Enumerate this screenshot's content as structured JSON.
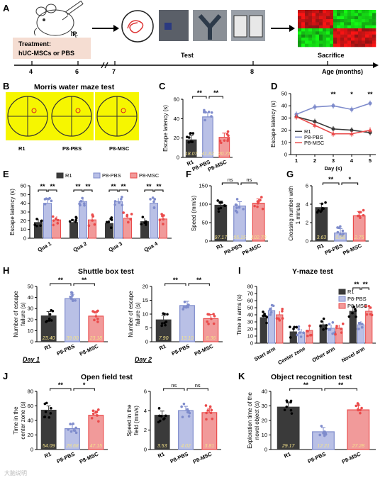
{
  "colors": {
    "R1": "#3a3a3a",
    "P8PBS": "#7f8ccc",
    "P8MSC": "#ea4b4b",
    "maze_bg": "#f6f600",
    "dl": "#f4e28a"
  },
  "panel_A": {
    "letter": "A",
    "ip": "IP.",
    "treatment": "Treatment:",
    "treatment2": "hUC-MSCs or PBS",
    "test": "Test",
    "sacrifice": "Sacrifice",
    "axis_label": "Age (months)",
    "ticks": [
      "4",
      "6",
      "7",
      "8"
    ]
  },
  "panel_B": {
    "letter": "B",
    "title": "Morris water maze test",
    "labels": [
      "R1",
      "P8-PBS",
      "P8-MSC"
    ]
  },
  "panel_C": {
    "letter": "C"
  },
  "panel_D": {
    "letter": "D"
  },
  "panel_E": {
    "letter": "E"
  },
  "panel_F": {
    "letter": "F"
  },
  "panel_G": {
    "letter": "G"
  },
  "panel_H": {
    "letter": "H",
    "title": "Shuttle box test",
    "day1": "Day 1",
    "day2": "Day 2"
  },
  "panel_I": {
    "letter": "I",
    "title": "Y-maze test"
  },
  "panel_J": {
    "letter": "J",
    "title": "Open field test"
  },
  "panel_K": {
    "letter": "K",
    "title": "Object recognition test"
  },
  "watermark": "大脑说明",
  "chart_data": [
    {
      "id": "C",
      "type": "bar",
      "categories": [
        "R1",
        "P8-PBS",
        "P8-MSC"
      ],
      "values": [
        18.07,
        41.82,
        20.71
      ],
      "labels": [
        "18.07",
        "41.82",
        "20.71"
      ],
      "ylabel": "Escape latency (s)",
      "ylim": [
        0,
        60
      ],
      "yticks": [
        0,
        20,
        40,
        60
      ],
      "sig": [
        {
          "a": 0,
          "b": 1,
          "t": "**"
        },
        {
          "a": 1,
          "b": 2,
          "t": "**"
        }
      ]
    },
    {
      "id": "D",
      "type": "line",
      "x": [
        1,
        2,
        3,
        4,
        5
      ],
      "xlabel": "Day (s)",
      "ylabel": "Escape latency (s)",
      "ylim": [
        0,
        50
      ],
      "yticks": [
        0,
        10,
        20,
        30,
        40,
        50
      ],
      "series": [
        {
          "name": "R1",
          "values": [
            31,
            27,
            21,
            20,
            18
          ]
        },
        {
          "name": "P8-PBS",
          "values": [
            33,
            39,
            40,
            37,
            42
          ]
        },
        {
          "name": "P8-MSC",
          "values": [
            31,
            24,
            17,
            17,
            20
          ]
        }
      ],
      "sig": [
        {
          "x": 3,
          "t": "**"
        },
        {
          "x": 4,
          "t": "*"
        },
        {
          "x": 5,
          "t": "**"
        }
      ]
    },
    {
      "id": "E",
      "type": "bar",
      "categories": [
        "Qua 1",
        "Qua 2",
        "Qua 3",
        "Qua 4"
      ],
      "ylabel": "Escape latency (s)",
      "ylim": [
        0,
        60
      ],
      "yticks": [
        0,
        10,
        20,
        30,
        40,
        50,
        60
      ],
      "series": [
        {
          "name": "R1",
          "values": [
            18,
            18,
            17,
            19
          ]
        },
        {
          "name": "P8-PBS",
          "values": [
            40,
            42,
            42,
            40
          ]
        },
        {
          "name": "P8-MSC",
          "values": [
            21,
            21,
            23,
            22
          ]
        }
      ],
      "sig_labels": [
        "**",
        "**"
      ]
    },
    {
      "id": "F",
      "type": "bar",
      "categories": [
        "R1",
        "P8-PBS",
        "P8-MSC"
      ],
      "values": [
        97.17,
        95.15,
        102.7
      ],
      "labels": [
        "97.17",
        "95.15",
        "102.70"
      ],
      "ylabel": "Speed (mm/s)",
      "ylim": [
        0,
        150
      ],
      "yticks": [
        0,
        50,
        100,
        150
      ],
      "sig": [
        {
          "a": 0,
          "b": 1,
          "t": "ns"
        },
        {
          "a": 1,
          "b": 2,
          "t": "ns"
        }
      ]
    },
    {
      "id": "G",
      "type": "bar",
      "categories": [
        "R1",
        "P8-PBS",
        "P8-MSC"
      ],
      "values": [
        3.63,
        0.88,
        2.75
      ],
      "labels": [
        "3.63",
        "0.88",
        "2.75"
      ],
      "ylabel": "Crossing number with 1 minute",
      "ylim": [
        0,
        6
      ],
      "yticks": [
        0,
        2,
        4,
        6
      ],
      "sig": [
        {
          "a": 0,
          "b": 1,
          "t": "**"
        },
        {
          "a": 1,
          "b": 2,
          "t": "*"
        }
      ]
    },
    {
      "id": "H1",
      "type": "bar",
      "categories": [
        "R1",
        "P8-PBS",
        "P8-MSC"
      ],
      "values": [
        23.4,
        39.0,
        23.18
      ],
      "labels": [
        "23.40",
        "39.00",
        "23.18"
      ],
      "ylabel": "Number of escape failure (s)",
      "ylim": [
        0,
        50
      ],
      "yticks": [
        0,
        10,
        20,
        30,
        40,
        50
      ],
      "sig": [
        {
          "a": 0,
          "b": 1,
          "t": "**"
        },
        {
          "a": 1,
          "b": 2,
          "t": "**"
        }
      ]
    },
    {
      "id": "H2",
      "type": "bar",
      "categories": [
        "R1",
        "P8-PBS",
        "P8-MSC"
      ],
      "values": [
        7.9,
        13.1,
        8.36
      ],
      "labels": [
        "7.90",
        "13.10",
        "8.36"
      ],
      "ylabel": "Number of escape failure (s)",
      "ylim": [
        0,
        20
      ],
      "yticks": [
        0,
        5,
        10,
        15,
        20
      ],
      "sig": [
        {
          "a": 0,
          "b": 1,
          "t": "**"
        },
        {
          "a": 1,
          "b": 2,
          "t": "**"
        }
      ]
    },
    {
      "id": "I",
      "type": "bar",
      "categories": [
        "Start arm",
        "Center zone",
        "Other arm",
        "Novel arm"
      ],
      "ylabel": "Time in arms (s)",
      "ylim": [
        0,
        80
      ],
      "yticks": [
        0,
        10,
        20,
        30,
        40,
        50,
        60,
        70,
        80
      ],
      "series": [
        {
          "name": "R1",
          "values": [
            36,
            16,
            26,
            45
          ]
        },
        {
          "name": "P8-PBS",
          "values": [
            46,
            15,
            21,
            26
          ]
        },
        {
          "name": "P8-MSC",
          "values": [
            40,
            18,
            21,
            45
          ]
        }
      ],
      "legend": [
        "R1",
        "P8-PBS",
        "P8-MSC"
      ],
      "sig_labels": [
        "**",
        "**"
      ]
    },
    {
      "id": "J1",
      "type": "bar",
      "categories": [
        "R1",
        "P8-PBS",
        "P8-MSC"
      ],
      "values": [
        54.09,
        28.68,
        47.15
      ],
      "labels": [
        "54.09",
        "28.68",
        "47.15"
      ],
      "ylabel": "Time in the center zone (s)",
      "ylim": [
        0,
        80
      ],
      "yticks": [
        0,
        20,
        40,
        60,
        80
      ],
      "sig": [
        {
          "a": 0,
          "b": 1,
          "t": "**"
        },
        {
          "a": 1,
          "b": 2,
          "t": "*"
        }
      ]
    },
    {
      "id": "J2",
      "type": "bar",
      "categories": [
        "R1",
        "P8-PBS",
        "P8-MSC"
      ],
      "values": [
        3.53,
        4.02,
        3.81
      ],
      "labels": [
        "3.53",
        "4.02",
        "3.81"
      ],
      "ylabel": "Speed in the field (mm/s)",
      "ylim": [
        0,
        6
      ],
      "yticks": [
        0,
        2,
        4,
        6
      ],
      "sig": [
        {
          "a": 0,
          "b": 1,
          "t": "ns"
        },
        {
          "a": 1,
          "b": 2,
          "t": "ns"
        }
      ]
    },
    {
      "id": "K",
      "type": "bar",
      "categories": [
        "R1",
        "P8-PBS",
        "P8-MSC"
      ],
      "values": [
        29.17,
        12.21,
        27.28
      ],
      "labels": [
        "29.17",
        "12.21",
        "27.28"
      ],
      "ylabel": "Exploration time of the novel object (s)",
      "ylim": [
        0,
        40
      ],
      "yticks": [
        0,
        10,
        20,
        30,
        40
      ],
      "sig": [
        {
          "a": 0,
          "b": 1,
          "t": "**"
        },
        {
          "a": 1,
          "b": 2,
          "t": "**"
        }
      ]
    }
  ]
}
